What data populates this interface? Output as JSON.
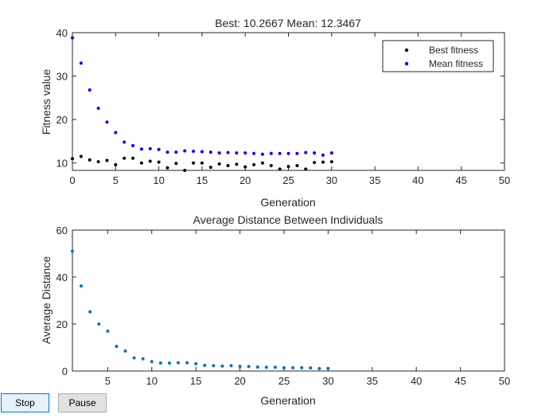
{
  "chart_data": [
    {
      "type": "scatter",
      "title": "Best: 10.2667 Mean: 12.3467",
      "xlabel": "Generation",
      "ylabel": "Fitness value",
      "xlim": [
        0,
        50
      ],
      "ylim": [
        8.3,
        40
      ],
      "x_ticks": [
        0,
        5,
        10,
        15,
        20,
        25,
        30,
        35,
        40,
        45,
        50
      ],
      "y_ticks": [
        10,
        20,
        30,
        40
      ],
      "legend": "top-right",
      "series": [
        {
          "name": "Best fitness",
          "color": "#000000",
          "x": [
            0,
            1,
            2,
            3,
            4,
            5,
            6,
            7,
            8,
            9,
            10,
            11,
            12,
            13,
            14,
            15,
            16,
            17,
            18,
            19,
            20,
            21,
            22,
            23,
            24,
            25,
            26,
            27,
            28,
            29,
            30
          ],
          "y": [
            11.0,
            11.5,
            10.7,
            10.3,
            10.6,
            9.6,
            11.1,
            11.1,
            10.0,
            10.4,
            10.2,
            8.9,
            9.9,
            8.3,
            10.0,
            10.0,
            9.0,
            9.8,
            9.4,
            9.7,
            9.1,
            9.6,
            10.0,
            9.4,
            8.6,
            9.2,
            9.4,
            8.6,
            10.1,
            10.2,
            10.3
          ]
        },
        {
          "name": "Mean fitness",
          "color": "#0000ff",
          "x": [
            0,
            1,
            2,
            3,
            4,
            5,
            6,
            7,
            8,
            9,
            10,
            11,
            12,
            13,
            14,
            15,
            16,
            17,
            18,
            19,
            20,
            21,
            22,
            23,
            24,
            25,
            26,
            27,
            28,
            29,
            30
          ],
          "y": [
            38.8,
            33.0,
            26.8,
            22.6,
            19.4,
            17.0,
            14.8,
            14.0,
            13.2,
            13.3,
            13.1,
            12.5,
            12.5,
            12.8,
            12.7,
            12.6,
            12.5,
            12.3,
            12.4,
            12.3,
            12.3,
            12.2,
            12.0,
            12.2,
            12.2,
            12.2,
            12.2,
            12.4,
            12.3,
            11.8,
            12.3
          ]
        }
      ]
    },
    {
      "type": "scatter",
      "title": "Average Distance Between Individuals",
      "xlabel": "Generation",
      "ylabel": "Average Distance",
      "xlim": [
        1,
        50
      ],
      "ylim": [
        0,
        60
      ],
      "x_ticks": [
        5,
        10,
        15,
        20,
        25,
        30,
        35,
        40,
        45,
        50
      ],
      "y_ticks": [
        0,
        20,
        40,
        60
      ],
      "series": [
        {
          "name": "Average distance",
          "color": "#0072bd",
          "x": [
            1,
            2,
            3,
            4,
            5,
            6,
            7,
            8,
            9,
            10,
            11,
            12,
            13,
            14,
            15,
            16,
            17,
            18,
            19,
            20,
            21,
            22,
            23,
            24,
            25,
            26,
            27,
            28,
            29,
            30
          ],
          "y": [
            51,
            36.2,
            25.2,
            20,
            17,
            10.5,
            8.5,
            5.6,
            5.2,
            4.0,
            3.4,
            3.4,
            3.5,
            3.5,
            3.1,
            2.4,
            2.3,
            2.1,
            2.3,
            2.0,
            1.9,
            1.7,
            1.6,
            1.6,
            1.4,
            1.4,
            1.4,
            1.3,
            1.0,
            1.1
          ]
        }
      ]
    }
  ],
  "controls": {
    "stop_label": "Stop",
    "pause_label": "Pause"
  }
}
